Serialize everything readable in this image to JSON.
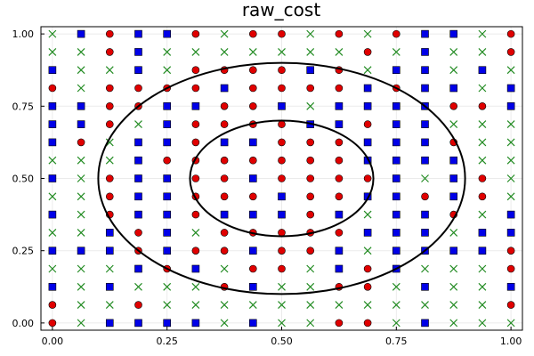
{
  "chart_data": {
    "type": "scatter",
    "title": "raw_cost",
    "xlabel": "",
    "ylabel": "",
    "xlim": [
      -0.025,
      1.025
    ],
    "ylim": [
      -0.025,
      1.025
    ],
    "x_ticks": [
      0.0,
      0.25,
      0.5,
      0.75,
      1.0
    ],
    "y_ticks": [
      0.0,
      0.25,
      0.5,
      0.75,
      1.0
    ],
    "x_tick_labels": [
      "0.00",
      "0.25",
      "0.50",
      "0.75",
      "1.00"
    ],
    "y_tick_labels": [
      "0.00",
      "0.25",
      "0.50",
      "0.75",
      "1.00"
    ],
    "grid": true,
    "legend": false,
    "grid_points": {
      "x": [
        0,
        0.0625,
        0.125,
        0.1875,
        0.25,
        0.3125,
        0.375,
        0.4375,
        0.5,
        0.5625,
        0.625,
        0.6875,
        0.75,
        0.8125,
        0.875,
        0.9375,
        1
      ],
      "y_top_to_bottom": [
        1,
        0.9375,
        0.875,
        0.8125,
        0.75,
        0.6875,
        0.625,
        0.5625,
        0.5,
        0.4375,
        0.375,
        0.3125,
        0.25,
        0.1875,
        0.125,
        0.0625,
        0
      ],
      "rows": [
        "XSCSSCXCCXCXCSSXC",
        "XXCSXXXXXXXCXSXXC",
        "SXXSXCCCCSCXSSXSX",
        "CXCCCCSCCCCSCSSXS",
        "SSCCSSCCSXSSSSCCS",
        "SSCXSCCCCSSCSSXXX",
        "SCXSSCSSCCCSSSCXX",
        "XXXSCCCCCCCSSSSXX",
        "SXCSSCCSCCCCSXSCX",
        "XXCSSCCCSCCSSCSCX",
        "SXCSSCSSSCSXSSCXS",
        "XXSCSXCCCCCSSSXSS",
        "SSSCSCCSCCSXSSSSC",
        "XXXSCSXCCXSCSXXXC",
        "SXSXXXCSXXCCXSXXS",
        "CXXCXXXXXXXXXXXXC",
        "CXSSSSXSXXCCXSXXX"
      ]
    },
    "markers": {
      "S": {
        "shape": "square",
        "color": "#0000e8"
      },
      "C": {
        "shape": "circle",
        "color": "#e00000"
      },
      "X": {
        "shape": "cross",
        "color": "#228b22"
      }
    },
    "contours": [
      {
        "center": [
          0.5,
          0.5
        ],
        "rx": 0.2,
        "ry": 0.2
      },
      {
        "center": [
          0.5,
          0.5
        ],
        "rx": 0.4,
        "ry": 0.4
      }
    ]
  }
}
